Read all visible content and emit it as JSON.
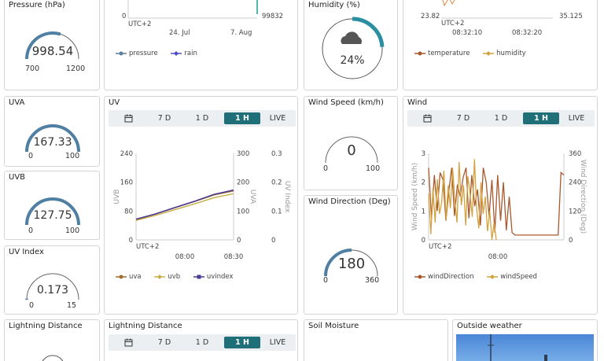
{
  "pressure": {
    "title": "Pressure (hPa)",
    "value": "998.54",
    "min": "700",
    "max": "1200",
    "fraction": 0.597
  },
  "pressure_chart": {
    "y_tick": "0",
    "y2_tick": "99832",
    "tz": "UTC+2",
    "x_ticks": [
      "24. Jul",
      "7. Aug"
    ],
    "legend": [
      "pressure",
      "rain"
    ]
  },
  "humidity": {
    "title": "Humidity (%)",
    "value": "24%",
    "fraction": 0.24,
    "icon": "cloud-icon"
  },
  "temperature_chart": {
    "y_tick": "23.82",
    "y2_tick": "35.125",
    "tz": "UTC+2",
    "x_ticks": [
      "08:32:10",
      "08:32:20"
    ],
    "legend": [
      "temperature",
      "humidity"
    ]
  },
  "uva": {
    "title": "UVA",
    "value": "167.33",
    "min": "0",
    "max": "100",
    "fraction": 1.0
  },
  "uvb": {
    "title": "UVB",
    "value": "127.75",
    "min": "0",
    "max": "100",
    "fraction": 1.0
  },
  "uv_index": {
    "title": "UV Index",
    "value": "0.173",
    "min": "0",
    "max": "15",
    "fraction": 0.012
  },
  "uv_chart": {
    "title": "UV",
    "tabs": [
      "7 D",
      "1 D",
      "1 H",
      "LIVE"
    ],
    "active_tab": "1 H",
    "tz": "UTC+2",
    "legend": [
      "uva",
      "uvb",
      "uvindex"
    ],
    "colors": [
      "#a26c2c",
      "#c9b04a",
      "#4b3a93"
    ]
  },
  "wind_speed": {
    "title": "Wind Speed (km/h)",
    "value": "0",
    "min": "0",
    "max": "100",
    "fraction": 0.0
  },
  "wind_direction": {
    "title": "Wind Direction (Deg)",
    "value": "180",
    "min": "0",
    "max": "360",
    "fraction": 0.5
  },
  "wind_chart": {
    "title": "Wind",
    "tabs": [
      "7 D",
      "1 D",
      "1 H",
      "LIVE"
    ],
    "active_tab": "1 H",
    "tz": "UTC+2",
    "legend": [
      "windDirection",
      "windSpeed"
    ],
    "colors": [
      "#a9582c",
      "#d3a240"
    ]
  },
  "lightning": {
    "title": "Lightning Distance"
  },
  "lightning_chart": {
    "title": "Lightning Distance",
    "tabs": [
      "7 D",
      "1 D",
      "1 H",
      "LIVE"
    ],
    "active_tab": "1 H"
  },
  "soil": {
    "title": "Soil Moisture"
  },
  "outside": {
    "title": "Outside weather"
  },
  "chart_data": [
    {
      "type": "line",
      "title": "UV",
      "x": [
        "07:27",
        "07:40",
        "07:55",
        "08:10",
        "08:25",
        "08:35"
      ],
      "x_ticks": [
        "08:00",
        "08:30"
      ],
      "y_left": {
        "label": "UVB",
        "ticks": [
          0,
          80,
          160,
          240
        ],
        "ylim": [
          0,
          240
        ]
      },
      "y_mid": {
        "label": "UVA",
        "ticks": [
          0,
          100,
          200,
          300
        ],
        "ylim": [
          0,
          300
        ]
      },
      "y_right": {
        "label": "UV Index",
        "ticks": [
          0,
          0.1,
          0.2,
          0.3
        ],
        "ylim": [
          0,
          0.3
        ]
      },
      "series": [
        {
          "name": "uva",
          "axis": "UVA",
          "values": [
            70,
            90,
            112,
            133,
            156,
            170
          ]
        },
        {
          "name": "uvb",
          "axis": "UVB",
          "values": [
            54,
            68,
            84,
            100,
            117,
            128
          ]
        },
        {
          "name": "uvindex",
          "axis": "UV Index",
          "values": [
            0.072,
            0.09,
            0.112,
            0.134,
            0.158,
            0.173
          ]
        }
      ]
    },
    {
      "type": "line",
      "title": "Wind",
      "x_ticks": [
        "08:00"
      ],
      "y_left": {
        "label": "Wind Speed (km/h)",
        "ticks": [
          0,
          1,
          2,
          3
        ],
        "ylim": [
          0,
          3
        ]
      },
      "y_right": {
        "label": "Wind Direction (Deg)",
        "ticks": [
          0,
          120,
          240,
          360
        ],
        "ylim": [
          0,
          360
        ]
      },
      "series": [
        {
          "name": "windDirection",
          "axis": "Wind Direction (Deg)",
          "values": [
            300,
            90,
            270,
            120,
            280,
            250,
            80,
            200,
            300,
            100,
            230,
            180,
            260,
            300,
            90,
            270,
            140,
            210,
            60,
            300,
            240,
            100,
            250,
            30,
            270,
            80,
            240,
            40,
            180,
            30,
            20,
            20,
            20,
            20,
            20,
            20,
            20,
            20,
            20,
            20,
            20,
            20,
            20,
            20,
            20,
            20,
            280,
            270
          ]
        },
        {
          "name": "windSpeed",
          "axis": "Wind Speed (km/h)",
          "values": [
            1.6,
            0.2,
            1.8,
            0.6,
            2.1,
            0.9,
            1.3,
            2.4,
            0.7,
            1.9,
            1.1,
            2.5,
            1.4,
            0.6,
            2.7,
            1.2,
            1.9,
            0.5,
            2.2,
            1.6,
            0.8,
            2.8,
            1.1,
            0.4,
            2.0,
            0.9,
            1.5,
            0.3,
            1.0,
            0,
            0.6,
            0
          ]
        }
      ]
    }
  ]
}
